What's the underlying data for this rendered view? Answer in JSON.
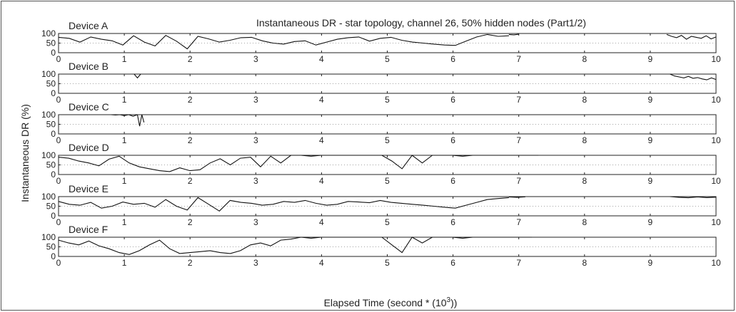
{
  "chart_data": {
    "type": "line",
    "title": "Instantaneous DR - star topology, channel 26, 50% hidden nodes (Part1/2)",
    "ylabel": "Instantaneous DR (%)",
    "xlabel_main": "Elapsed Time (second * (10",
    "xlabel_sup": "3",
    "xlabel_end": "))",
    "xlim": [
      0,
      10
    ],
    "ylim": [
      0,
      100
    ],
    "xticks": [
      "0",
      "1",
      "2",
      "3",
      "4",
      "5",
      "6",
      "7",
      "8",
      "9",
      "10"
    ],
    "yticks": [
      "0",
      "50",
      "100"
    ],
    "grid": "dotted",
    "series": [
      {
        "name": "Device A",
        "segments": [
          {
            "x0": 0,
            "x1": 6.85,
            "pts": [
              80,
              75,
              55,
              82,
              70,
              62,
              40,
              88,
              55,
              35,
              90,
              60,
              20,
              85,
              72,
              55,
              65,
              78,
              80,
              62,
              50,
              45,
              58,
              62,
              40,
              55,
              70,
              78,
              82,
              60,
              75,
              80,
              65,
              55,
              50,
              45,
              40,
              38,
              60,
              82,
              95,
              85,
              88
            ]
          },
          {
            "x0": 6.85,
            "x1": 7.0,
            "pts": [
              95,
              93,
              96
            ]
          },
          {
            "x0": 9.25,
            "x1": 10,
            "pts": [
              95,
              85,
              78,
              90,
              70,
              85,
              80,
              75,
              88,
              72,
              82
            ]
          }
        ]
      },
      {
        "name": "Device B",
        "segments": [
          {
            "x0": 1.15,
            "x1": 1.25,
            "pts": [
              100,
              80,
              100
            ]
          },
          {
            "x0": 9.3,
            "x1": 10,
            "pts": [
              100,
              90,
              85,
              80,
              88,
              78,
              82,
              75,
              70,
              80,
              72
            ]
          }
        ]
      },
      {
        "name": "Device C",
        "segments": [
          {
            "x0": 0.8,
            "x1": 1.2,
            "pts": [
              100,
              98,
              100,
              95,
              100,
              92,
              100
            ]
          },
          {
            "x0": 1.2,
            "x1": 1.3,
            "pts": [
              100,
              40,
              100,
              60
            ]
          }
        ]
      },
      {
        "name": "Device D",
        "segments": [
          {
            "x0": 0,
            "x1": 6.3,
            "pts": [
              90,
              85,
              70,
              60,
              45,
              80,
              95,
              60,
              40,
              30,
              20,
              15,
              35,
              20,
              25,
              60,
              82,
              50,
              85,
              90,
              40,
              95,
              60,
              100,
              100,
              95,
              100,
              100,
              100,
              100,
              100,
              100,
              100,
              70,
              30,
              100,
              60,
              100,
              100,
              100,
              95,
              100
            ]
          },
          {
            "x0": 6.3,
            "x1": 7.3,
            "pts": [
              100,
              100,
              100
            ]
          }
        ]
      },
      {
        "name": "Device E",
        "segments": [
          {
            "x0": 0,
            "x1": 6.85,
            "pts": [
              75,
              60,
              55,
              70,
              40,
              50,
              72,
              60,
              65,
              45,
              85,
              50,
              30,
              95,
              60,
              25,
              80,
              70,
              65,
              55,
              60,
              75,
              70,
              80,
              65,
              55,
              60,
              75,
              72,
              68,
              80,
              70,
              65,
              60,
              55,
              50,
              45,
              40,
              55,
              70,
              85,
              90,
              95
            ]
          },
          {
            "x0": 6.85,
            "x1": 7.1,
            "pts": [
              98,
              96,
              99
            ]
          },
          {
            "x0": 9.3,
            "x1": 10,
            "pts": [
              100,
              96,
              94,
              98,
              95,
              97
            ]
          }
        ]
      },
      {
        "name": "Device F",
        "segments": [
          {
            "x0": 0,
            "x1": 6.3,
            "pts": [
              85,
              70,
              60,
              80,
              55,
              40,
              20,
              10,
              30,
              60,
              85,
              40,
              15,
              20,
              25,
              30,
              20,
              15,
              30,
              60,
              70,
              55,
              85,
              90,
              100,
              95,
              100,
              100,
              100,
              100,
              100,
              100,
              100,
              60,
              20,
              100,
              70,
              100,
              100,
              100,
              95,
              100
            ]
          },
          {
            "x0": 6.3,
            "x1": 7.2,
            "pts": [
              100,
              100,
              100
            ]
          }
        ]
      }
    ]
  }
}
